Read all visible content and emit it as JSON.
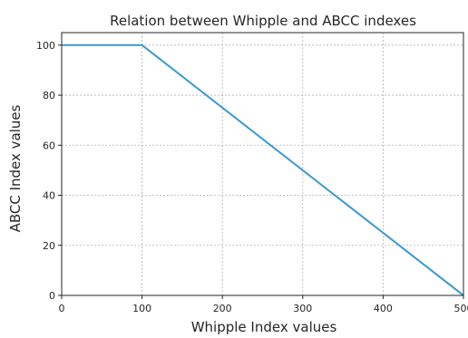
{
  "chart_data": {
    "type": "line",
    "title": "Relation between Whipple and ABCC indexes",
    "xlabel": "Whipple Index values",
    "ylabel": "ABCC Index values",
    "xlim": [
      0,
      500
    ],
    "ylim": [
      0,
      105
    ],
    "x_ticks": [
      0,
      100,
      200,
      300,
      400,
      500
    ],
    "y_ticks": [
      0,
      20,
      40,
      60,
      80,
      100
    ],
    "grid": true,
    "series": [
      {
        "color": "#3a99cf",
        "x": [
          0,
          100,
          500
        ],
        "y": [
          100,
          100,
          0
        ]
      }
    ]
  }
}
